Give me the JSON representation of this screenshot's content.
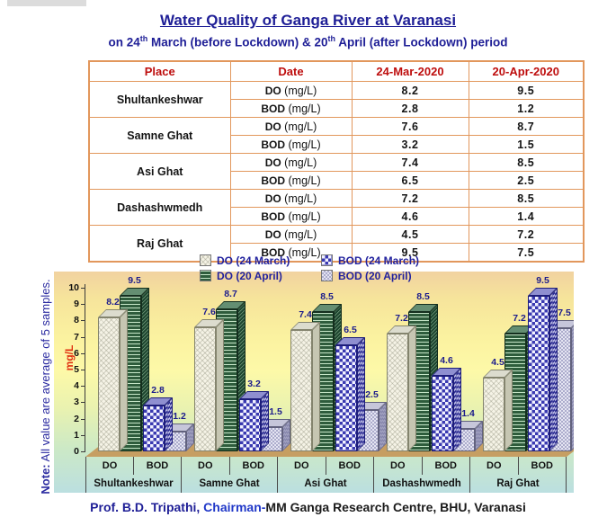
{
  "page": {
    "title": "Water Quality of Ganga River at Varanasi",
    "subtitle": {
      "p1": "on 24",
      "sup1": "th",
      "p2": " March (before Lockdown) & 20",
      "sup2": "th",
      "p3": " April (after Lockdown) period"
    },
    "footer": {
      "name": "Prof. B.D. Tripathi,",
      "role": " Chairman-",
      "org": "MM Ganga Research Centre, BHU, Varanasi"
    }
  },
  "table": {
    "headers": [
      "Place",
      "Date",
      "24-Mar-2020",
      "20-Apr-2020"
    ],
    "unit": "(mg/L)",
    "rows": [
      {
        "place": "Shultankeshwar",
        "do": {
          "label": "DO",
          "mar": "8.2",
          "apr": "9.5"
        },
        "bod": {
          "label": "BOD",
          "mar": "2.8",
          "apr": "1.2"
        }
      },
      {
        "place": "Samne Ghat",
        "do": {
          "label": "DO",
          "mar": "7.6",
          "apr": "8.7"
        },
        "bod": {
          "label": "BOD",
          "mar": "3.2",
          "apr": "1.5"
        }
      },
      {
        "place": "Asi Ghat",
        "do": {
          "label": "DO",
          "mar": "7.4",
          "apr": "8.5"
        },
        "bod": {
          "label": "BOD",
          "mar": "6.5",
          "apr": "2.5"
        }
      },
      {
        "place": "Dashashwmedh",
        "do": {
          "label": "DO",
          "mar": "7.2",
          "apr": "8.5"
        },
        "bod": {
          "label": "BOD",
          "mar": "4.6",
          "apr": "1.4"
        }
      },
      {
        "place": "Raj Ghat",
        "do": {
          "label": "DO",
          "mar": "4.5",
          "apr": "7.2"
        },
        "bod": {
          "label": "BOD",
          "mar": "9.5",
          "apr": "7.5"
        }
      }
    ]
  },
  "chart_data": {
    "type": "bar",
    "title": "",
    "xlabel": "",
    "ylabel": "mg/L",
    "ylim": [
      0,
      10
    ],
    "yticks": [
      0,
      1,
      2,
      3,
      4,
      5,
      6,
      7,
      8,
      9,
      10
    ],
    "grid": false,
    "legend_position": "top",
    "categories": [
      "Shultankeshwar",
      "Samne Ghat",
      "Asi Ghat",
      "Dashashwmedh",
      "Raj Ghat"
    ],
    "sub_categories": [
      "DO",
      "BOD"
    ],
    "series": [
      {
        "key": "do-mar",
        "name": "DO (24 March)",
        "values": [
          8.2,
          7.6,
          7.4,
          7.2,
          4.5
        ]
      },
      {
        "key": "do-apr",
        "name": "DO (20 April)",
        "values": [
          9.5,
          8.7,
          8.5,
          8.5,
          7.2
        ]
      },
      {
        "key": "bod-mar",
        "name": "BOD (24 March)",
        "values": [
          2.8,
          3.2,
          6.5,
          4.6,
          9.5
        ]
      },
      {
        "key": "bod-apr",
        "name": "BOD (20 April)",
        "values": [
          1.2,
          1.5,
          2.5,
          1.4,
          7.5
        ]
      }
    ],
    "legend_order": [
      "do-mar",
      "bod-mar",
      "do-apr",
      "bod-apr"
    ],
    "note": {
      "label": "Note:",
      "text": " All value are average of 5 samples."
    },
    "colors": {
      "do_mar_face": "#F5F3E6",
      "do_apr_face": "#2E5C3C",
      "bod_mar_face": "#3939B0",
      "bod_apr_face": "#E4E4F2",
      "floor": "#C69E62",
      "value_label": "#1C1C8C",
      "ylabel_red": "#E03010",
      "title_navy": "#1E1E96",
      "table_header_red": "#BE0E0E",
      "table_border_orange": "#E2975C"
    }
  }
}
